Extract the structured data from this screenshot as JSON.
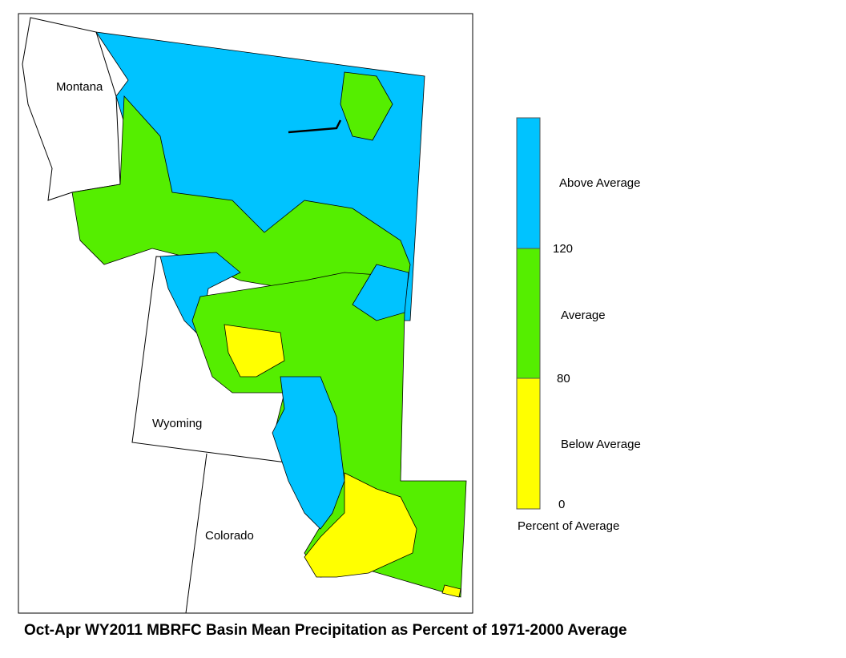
{
  "map": {
    "title": "Oct-Apr WY2011 MBRFC Basin Mean Precipitation as Percent of 1971-2000 Average",
    "states": [
      {
        "label": "Montana"
      },
      {
        "label": "Wyoming"
      },
      {
        "label": "Colorado"
      }
    ],
    "legend": {
      "title": "Percent of Average",
      "classes": [
        {
          "label": "Below Average",
          "color": "#ffff00"
        },
        {
          "label": "Average",
          "color": "#55ee00"
        },
        {
          "label": "Above Average",
          "color": "#00c3ff"
        }
      ],
      "breaks": [
        0,
        80,
        120
      ]
    }
  }
}
